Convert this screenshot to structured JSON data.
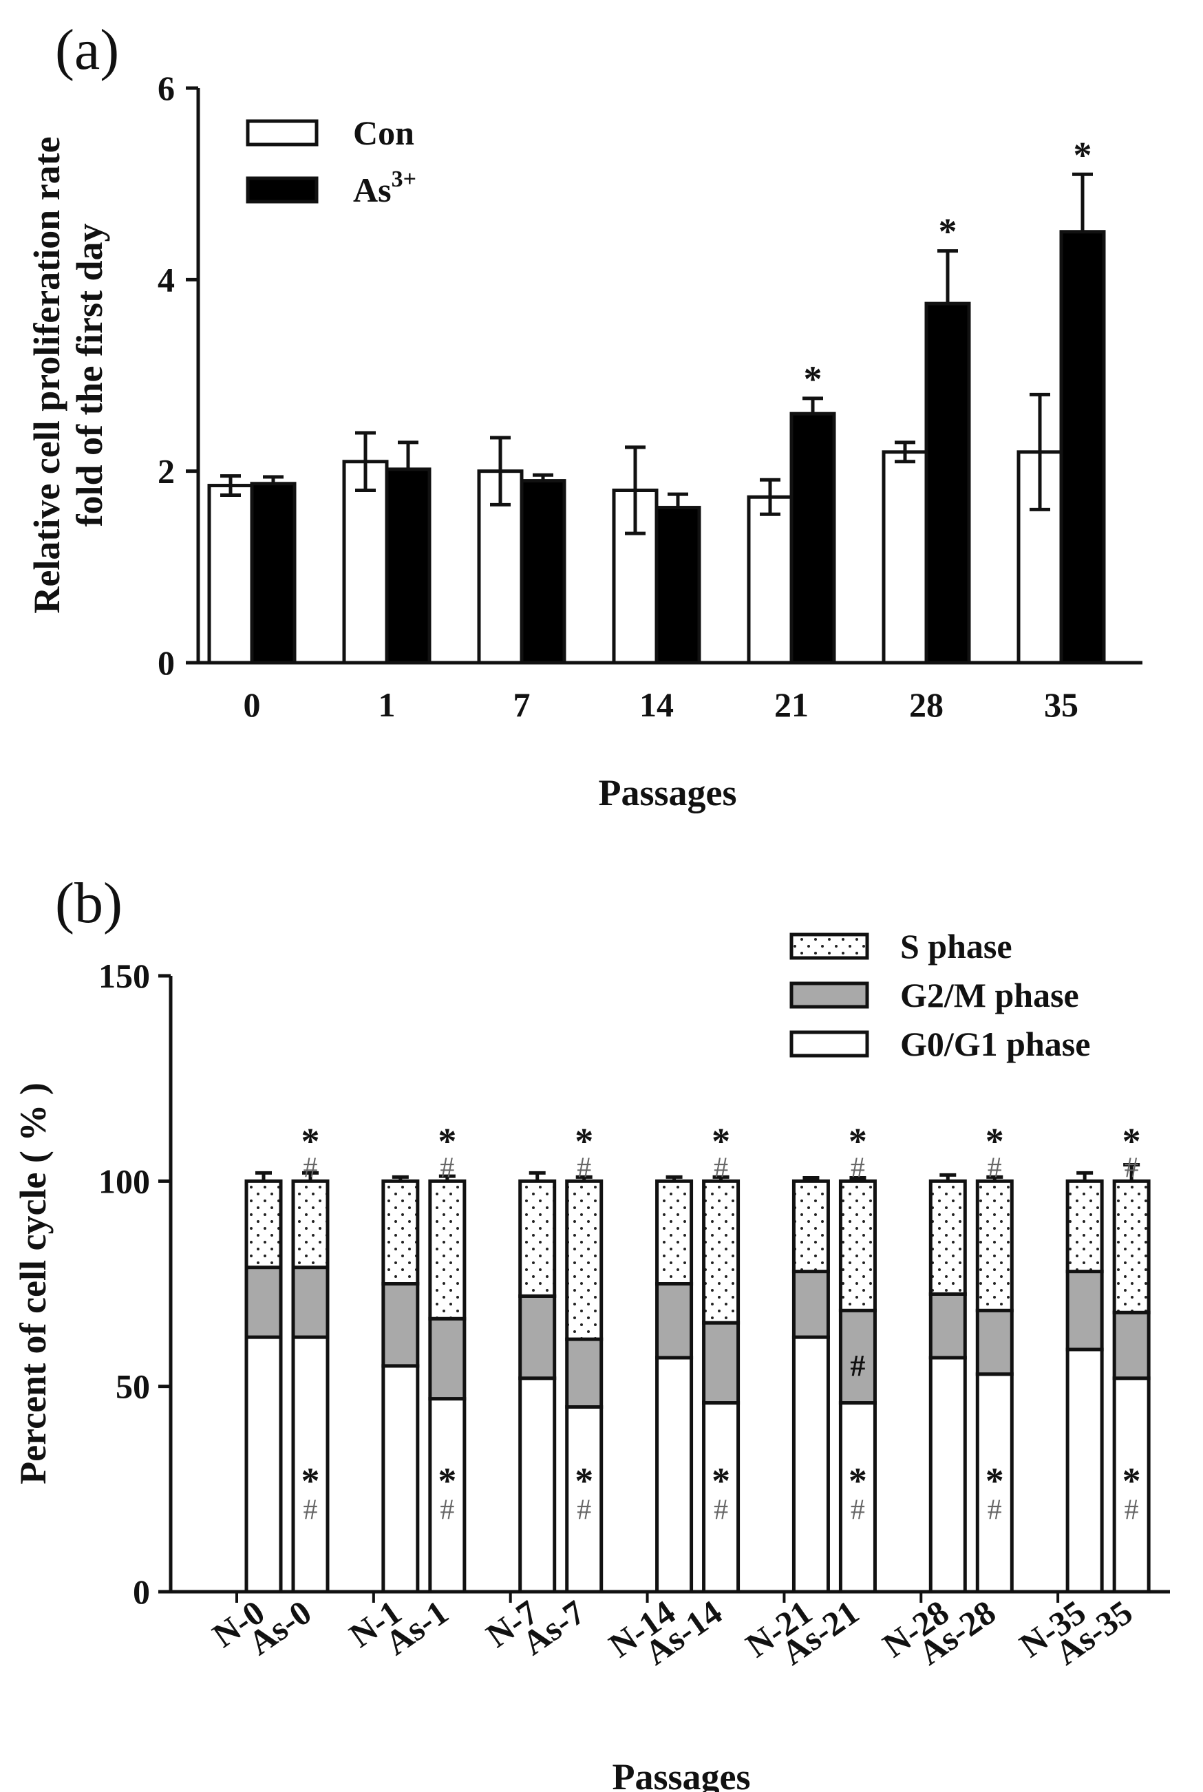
{
  "figure": {
    "panel_a_label": "(a)",
    "panel_b_label": "(b)"
  },
  "chart_data": [
    {
      "type": "bar",
      "title": "",
      "xlabel": "Passages",
      "ylabel_line1": "Relative cell proliferation rate",
      "ylabel_line2": "fold of the first day",
      "ylim": [
        0,
        6
      ],
      "yticks": [
        0,
        2,
        4,
        6
      ],
      "categories": [
        "0",
        "1",
        "7",
        "14",
        "21",
        "28",
        "35"
      ],
      "legend": {
        "con": "Con",
        "as": "As",
        "as_sup": "3+",
        "placement": "top-left"
      },
      "series": [
        {
          "name": "Con",
          "color": "#ffffff",
          "values": [
            1.85,
            2.1,
            2.0,
            1.8,
            1.73,
            2.2,
            2.2
          ],
          "errors": [
            0.1,
            0.3,
            0.35,
            0.45,
            0.18,
            0.1,
            0.6
          ]
        },
        {
          "name": "As3+",
          "color": "#000000",
          "values": [
            1.87,
            2.02,
            1.9,
            1.62,
            2.6,
            3.75,
            4.5
          ],
          "errors": [
            0.07,
            0.28,
            0.06,
            0.14,
            0.16,
            0.55,
            0.6
          ]
        }
      ],
      "significance": [
        "",
        "",
        "",
        "",
        "*",
        "*",
        "*"
      ]
    },
    {
      "type": "bar",
      "stacked": true,
      "xlabel": "Passages",
      "ylabel": "Percent of cell cycle ( % )",
      "ylim": [
        0,
        150
      ],
      "yticks": [
        0,
        50,
        100,
        150
      ],
      "legend": {
        "placement": "top-right",
        "items": [
          {
            "name": "S phase",
            "pattern": "dots"
          },
          {
            "name": "G2/M phase",
            "color": "#a9a9a9"
          },
          {
            "name": "G0/G1 phase",
            "color": "#ffffff"
          }
        ]
      },
      "groups": [
        {
          "labels": [
            "N-0",
            "As-0"
          ]
        },
        {
          "labels": [
            "N-1",
            "As-1"
          ]
        },
        {
          "labels": [
            "N-7",
            "As-7"
          ]
        },
        {
          "labels": [
            "N-14",
            "As-14"
          ]
        },
        {
          "labels": [
            "N-21",
            "As-21"
          ]
        },
        {
          "labels": [
            "N-28",
            "As-28"
          ]
        },
        {
          "labels": [
            "N-35",
            "As-35"
          ]
        }
      ],
      "series": [
        {
          "name": "G0/G1 phase",
          "values": [
            62,
            62,
            55,
            47,
            52,
            45,
            57,
            46,
            62,
            46,
            57,
            53,
            59,
            52
          ],
          "errors": [
            1.5,
            1.5,
            1.5,
            1.5,
            1.5,
            1.5,
            1,
            0.8,
            0.8,
            1.2,
            1.2,
            1.5,
            2.5,
            3
          ]
        },
        {
          "name": "G2/M phase",
          "values": [
            17,
            17,
            20,
            19.5,
            20,
            16.5,
            18,
            19.5,
            16,
            22.5,
            15.5,
            15.5,
            19,
            16
          ],
          "errors": [
            4.5,
            4.5,
            2.5,
            2,
            2.5,
            1.5,
            2,
            1.5,
            1,
            1.2,
            1.5,
            1.5,
            5,
            2
          ]
        },
        {
          "name": "S phase",
          "values": [
            21,
            21,
            25,
            33.5,
            28,
            38.5,
            25,
            34.5,
            22,
            31.5,
            27.5,
            31.5,
            22,
            32
          ],
          "errors": [
            2,
            2,
            1,
            1.2,
            2,
            1,
            1,
            1,
            0.8,
            0.8,
            1.5,
            1,
            2,
            4
          ]
        }
      ],
      "top_star": [
        "",
        "*",
        "",
        "*",
        "",
        "*",
        "",
        "*",
        "",
        "*",
        "",
        "*",
        "",
        "*"
      ],
      "top_hash": [
        "",
        "#",
        "",
        "#",
        "",
        "#",
        "",
        "#",
        "",
        "#",
        "",
        "#",
        "",
        "#"
      ],
      "mid_hash": [
        "",
        "",
        "",
        "",
        "",
        "",
        "",
        "",
        "",
        "#",
        "",
        "",
        "",
        ""
      ],
      "bottom_star": [
        "",
        "*",
        "",
        "*",
        "",
        "*",
        "",
        "*",
        "",
        "*",
        "",
        "*",
        "",
        "*"
      ],
      "bottom_hash": [
        "",
        "#",
        "",
        "#",
        "",
        "#",
        "",
        "#",
        "",
        "#",
        "",
        "#",
        "",
        "#"
      ]
    }
  ]
}
